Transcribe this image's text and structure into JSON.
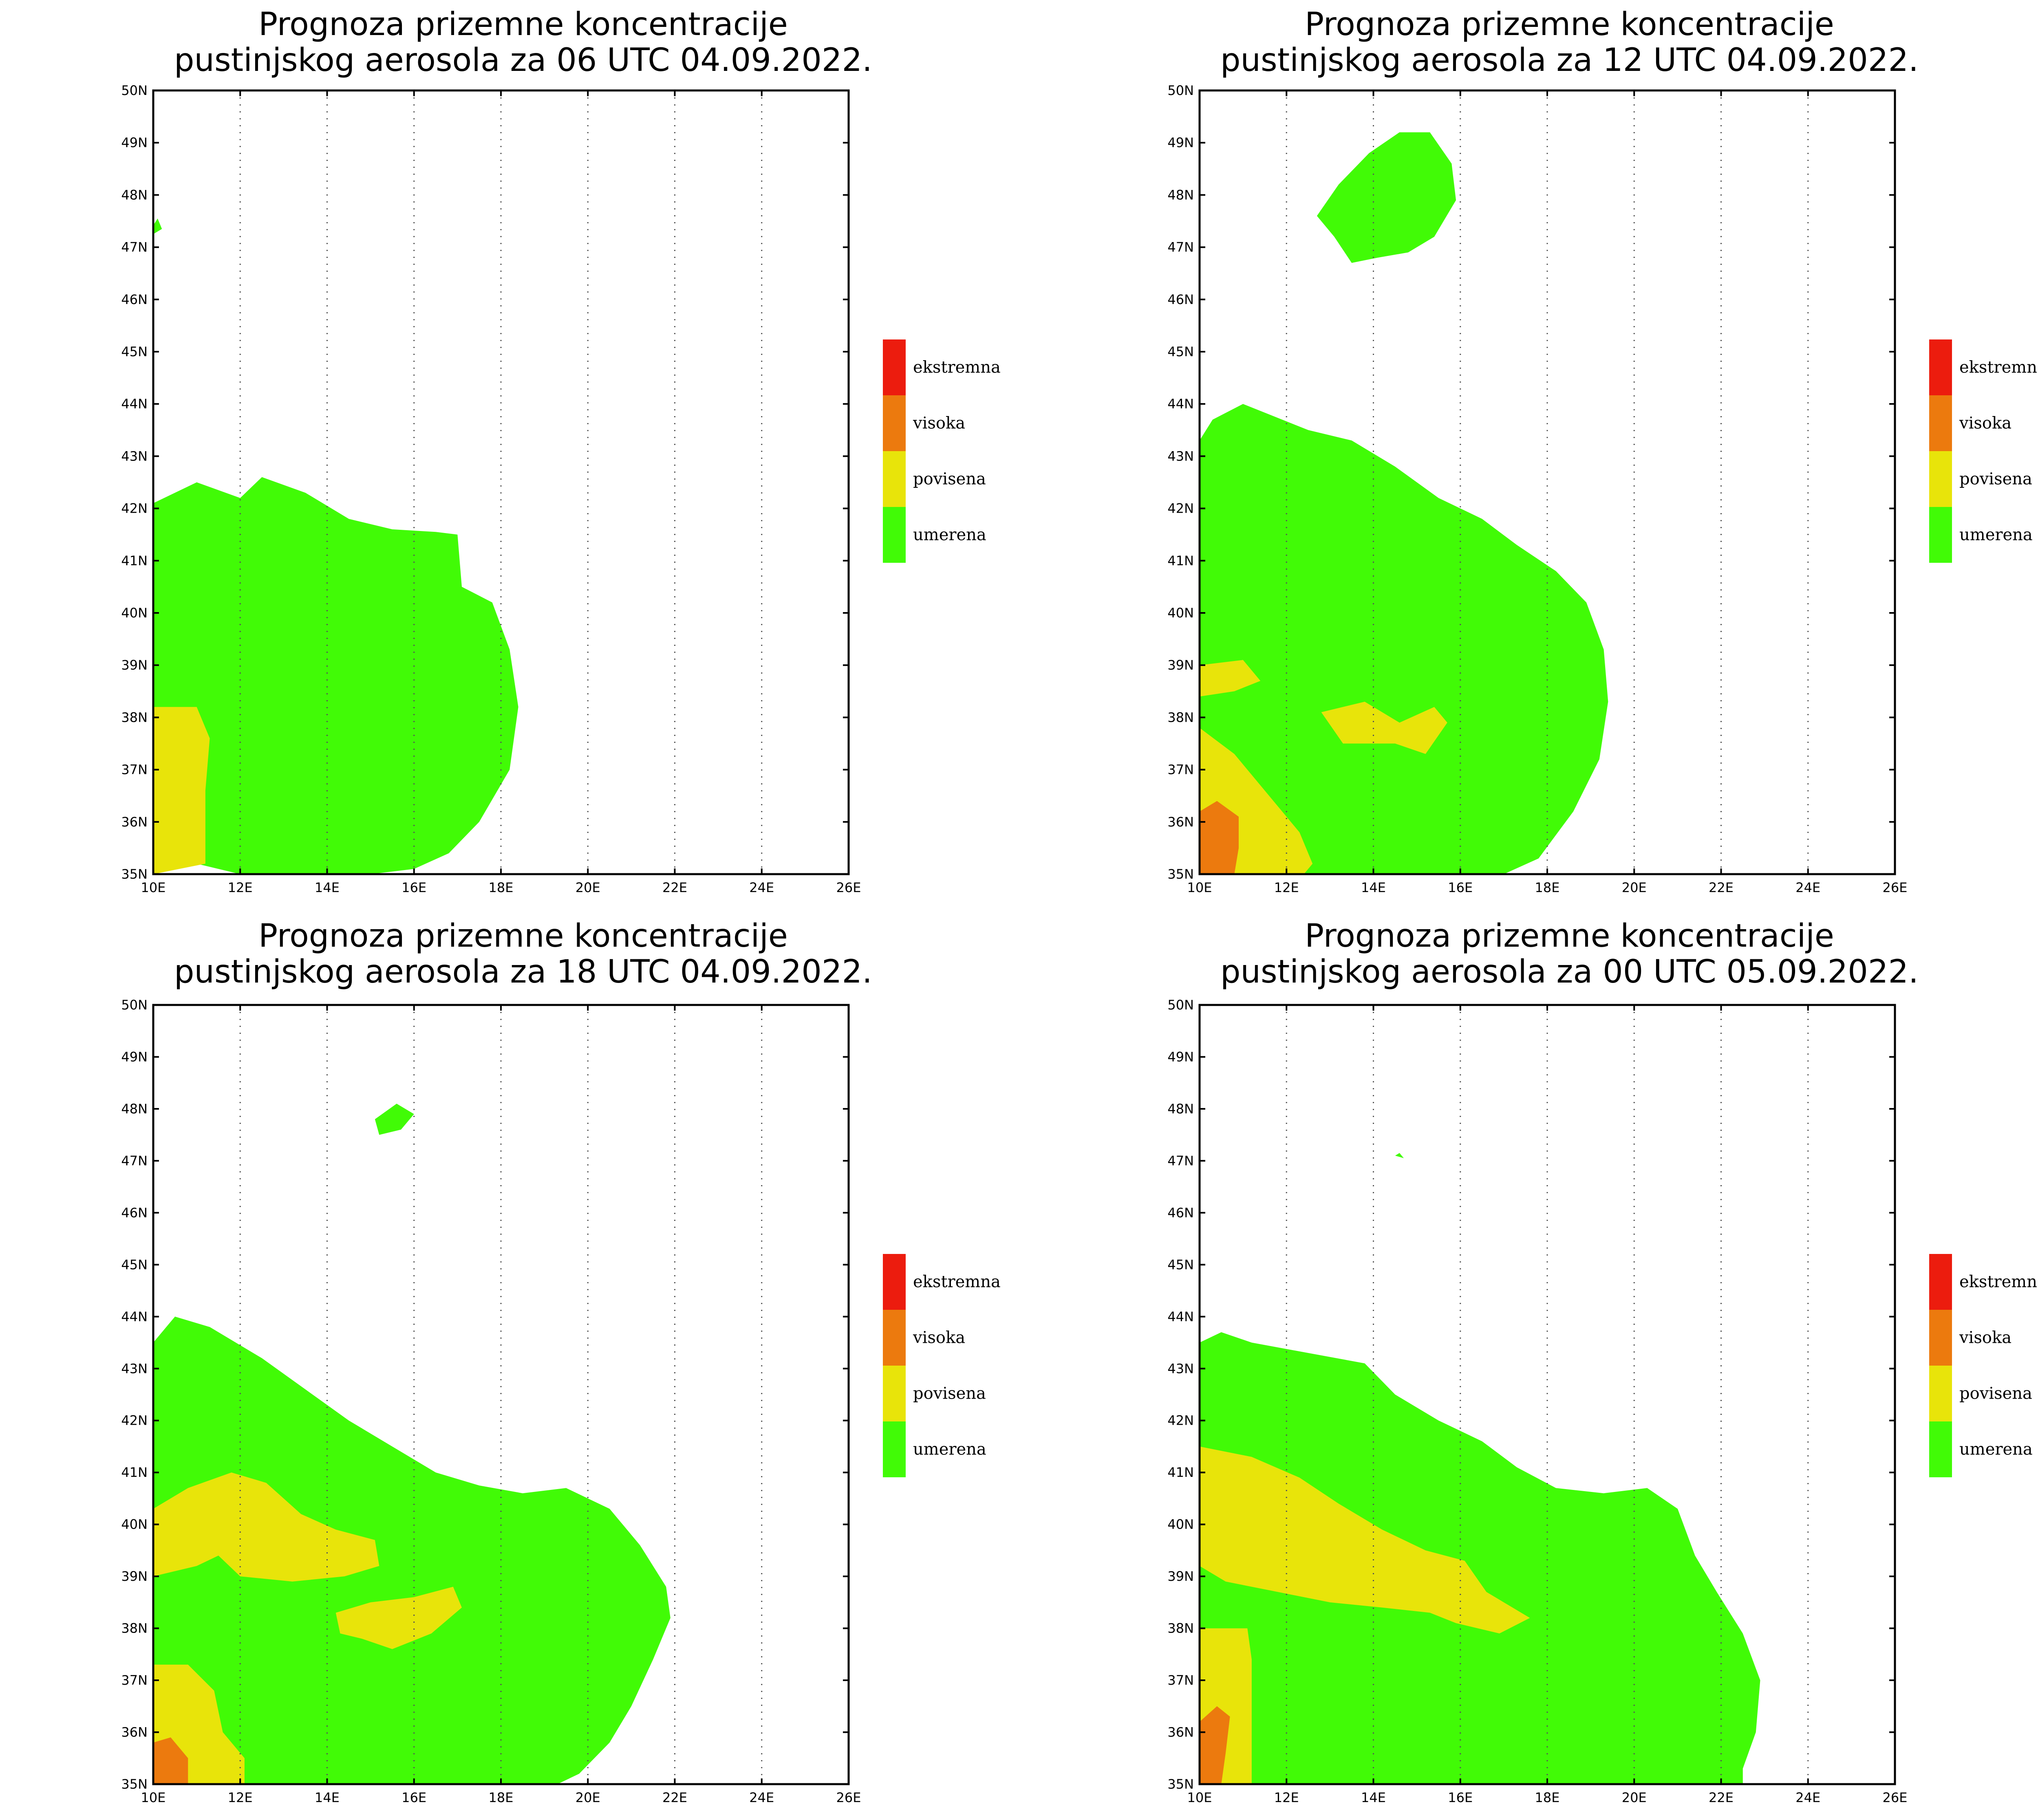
{
  "colors": {
    "ekstremna": "#ec1c0e",
    "visoka": "#ec7a0e",
    "povisena": "#e8e40a",
    "umerena": "#41fb06",
    "border": "#000000",
    "grid": "#555555"
  },
  "legend": [
    {
      "label": "ekstremna",
      "color_key": "ekstremna"
    },
    {
      "label": "visoka",
      "color_key": "visoka"
    },
    {
      "label": "povisena",
      "color_key": "povisena"
    },
    {
      "label": "umerena",
      "color_key": "umerena"
    }
  ],
  "axes": {
    "lon_range": [
      10,
      26
    ],
    "lat_range": [
      35,
      50
    ],
    "lon_ticks": [
      "10E",
      "12E",
      "14E",
      "16E",
      "18E",
      "20E",
      "22E",
      "24E",
      "26E"
    ],
    "lat_ticks": [
      "35N",
      "36N",
      "37N",
      "38N",
      "39N",
      "40N",
      "41N",
      "42N",
      "43N",
      "44N",
      "45N",
      "46N",
      "47N",
      "48N",
      "49N",
      "50N"
    ],
    "grid_lons": [
      12,
      14,
      16,
      18,
      20,
      22,
      24
    ]
  },
  "panels": [
    {
      "title_line1": "Prognoza prizemne koncentracije",
      "title_line2": "pustinjskog aerosola za 06 UTC 04.09.2022.",
      "regions": [
        {
          "level": "umerena",
          "coords": [
            [
              10,
              42.1
            ],
            [
              10.5,
              42.3
            ],
            [
              11,
              42.5
            ],
            [
              12,
              42.2
            ],
            [
              12.5,
              42.6
            ],
            [
              13.5,
              42.3
            ],
            [
              14.5,
              41.8
            ],
            [
              15.5,
              41.6
            ],
            [
              16.5,
              41.55
            ],
            [
              17,
              41.5
            ],
            [
              17.1,
              40.5
            ],
            [
              17.8,
              40.2
            ],
            [
              18.2,
              39.3
            ],
            [
              18.4,
              38.2
            ],
            [
              18.2,
              37
            ],
            [
              17.5,
              36
            ],
            [
              16.8,
              35.4
            ],
            [
              16,
              35.1
            ],
            [
              15,
              35
            ],
            [
              12,
              35
            ],
            [
              11,
              35.2
            ],
            [
              10,
              35
            ]
          ]
        },
        {
          "level": "povisena",
          "coords": [
            [
              10,
              38.2
            ],
            [
              11,
              38.2
            ],
            [
              11.3,
              37.6
            ],
            [
              11.2,
              36.6
            ],
            [
              11.2,
              35.2
            ],
            [
              10,
              35
            ]
          ]
        },
        {
          "level": "umerena",
          "coords": [
            [
              9.95,
              47.35
            ],
            [
              10.1,
              47.55
            ],
            [
              10.2,
              47.35
            ],
            [
              10,
              47.25
            ]
          ]
        }
      ]
    },
    {
      "title_line1": "Prognoza prizemne koncentracije",
      "title_line2": "pustinjskog aerosola za 12 UTC 04.09.2022.",
      "regions": [
        {
          "level": "umerena",
          "coords": [
            [
              10,
              43.3
            ],
            [
              10.3,
              43.7
            ],
            [
              11,
              44
            ],
            [
              12.5,
              43.5
            ],
            [
              13.5,
              43.3
            ],
            [
              14.5,
              42.8
            ],
            [
              15.5,
              42.2
            ],
            [
              16.5,
              41.8
            ],
            [
              17.3,
              41.3
            ],
            [
              18.2,
              40.8
            ],
            [
              18.9,
              40.2
            ],
            [
              19.3,
              39.3
            ],
            [
              19.4,
              38.3
            ],
            [
              19.2,
              37.2
            ],
            [
              18.6,
              36.2
            ],
            [
              17.8,
              35.3
            ],
            [
              17,
              35
            ],
            [
              10,
              35
            ]
          ]
        },
        {
          "level": "povisena",
          "coords": [
            [
              10,
              39.0
            ],
            [
              11,
              39.1
            ],
            [
              11.4,
              38.7
            ],
            [
              10.8,
              38.5
            ],
            [
              10,
              38.4
            ]
          ]
        },
        {
          "level": "povisena",
          "coords": [
            [
              10,
              37.8
            ],
            [
              10.8,
              37.3
            ],
            [
              11.5,
              36.6
            ],
            [
              12.3,
              35.8
            ],
            [
              12.6,
              35.2
            ],
            [
              12.4,
              35
            ],
            [
              10,
              35
            ]
          ]
        },
        {
          "level": "visoka",
          "coords": [
            [
              10,
              36.2
            ],
            [
              10.4,
              36.4
            ],
            [
              10.9,
              36.1
            ],
            [
              10.9,
              35.5
            ],
            [
              10.8,
              35
            ],
            [
              10,
              35
            ]
          ]
        },
        {
          "level": "povisena",
          "coords": [
            [
              12.8,
              38.1
            ],
            [
              13.8,
              38.3
            ],
            [
              14.6,
              37.9
            ],
            [
              15.4,
              38.2
            ],
            [
              15.7,
              37.9
            ],
            [
              15.2,
              37.3
            ],
            [
              14.5,
              37.5
            ],
            [
              13.3,
              37.5
            ]
          ]
        },
        {
          "level": "umerena",
          "coords": [
            [
              12.7,
              47.6
            ],
            [
              13.2,
              48.2
            ],
            [
              13.9,
              48.8
            ],
            [
              14.6,
              49.2
            ],
            [
              15.3,
              49.2
            ],
            [
              15.8,
              48.6
            ],
            [
              15.9,
              47.9
            ],
            [
              15.4,
              47.2
            ],
            [
              14.8,
              46.9
            ],
            [
              14.1,
              46.8
            ],
            [
              13.5,
              46.7
            ],
            [
              13.1,
              47.2
            ]
          ]
        }
      ]
    },
    {
      "title_line1": "Prognoza prizemne koncentracije",
      "title_line2": "pustinjskog aerosola za 18 UTC 04.09.2022.",
      "regions": [
        {
          "level": "umerena",
          "coords": [
            [
              10,
              43.5
            ],
            [
              10.5,
              44
            ],
            [
              11.3,
              43.8
            ],
            [
              12.5,
              43.2
            ],
            [
              13.5,
              42.6
            ],
            [
              14.5,
              42
            ],
            [
              15.5,
              41.5
            ],
            [
              16.5,
              41
            ],
            [
              17.5,
              40.75
            ],
            [
              18.5,
              40.6
            ],
            [
              19.5,
              40.7
            ],
            [
              20.5,
              40.3
            ],
            [
              21.2,
              39.6
            ],
            [
              21.8,
              38.8
            ],
            [
              21.9,
              38.2
            ],
            [
              21.5,
              37.4
            ],
            [
              21,
              36.5
            ],
            [
              20.5,
              35.8
            ],
            [
              19.8,
              35.2
            ],
            [
              19.3,
              35
            ],
            [
              10,
              35
            ]
          ]
        },
        {
          "level": "povisena",
          "coords": [
            [
              10,
              40.3
            ],
            [
              10.8,
              40.7
            ],
            [
              11.8,
              41
            ],
            [
              12.6,
              40.8
            ],
            [
              13.4,
              40.2
            ],
            [
              14.2,
              39.9
            ],
            [
              15.1,
              39.7
            ],
            [
              15.2,
              39.2
            ],
            [
              14.4,
              39
            ],
            [
              13.2,
              38.9
            ],
            [
              12,
              39
            ],
            [
              11.5,
              39.4
            ],
            [
              11,
              39.2
            ],
            [
              10,
              39
            ]
          ]
        },
        {
          "level": "povisena",
          "coords": [
            [
              14.2,
              38.3
            ],
            [
              15,
              38.5
            ],
            [
              16,
              38.6
            ],
            [
              16.9,
              38.8
            ],
            [
              17.1,
              38.4
            ],
            [
              16.4,
              37.9
            ],
            [
              15.5,
              37.6
            ],
            [
              14.8,
              37.8
            ],
            [
              14.3,
              37.9
            ]
          ]
        },
        {
          "level": "povisena",
          "coords": [
            [
              10,
              37.3
            ],
            [
              10.8,
              37.3
            ],
            [
              11.4,
              36.8
            ],
            [
              11.6,
              36
            ],
            [
              12.1,
              35.5
            ],
            [
              12.1,
              35
            ],
            [
              10,
              35
            ]
          ]
        },
        {
          "level": "visoka",
          "coords": [
            [
              10,
              35.8
            ],
            [
              10.4,
              35.9
            ],
            [
              10.8,
              35.5
            ],
            [
              10.8,
              35
            ],
            [
              10,
              35
            ]
          ]
        },
        {
          "level": "umerena",
          "coords": [
            [
              15.1,
              47.8
            ],
            [
              15.6,
              48.1
            ],
            [
              16,
              47.9
            ],
            [
              15.7,
              47.6
            ],
            [
              15.2,
              47.5
            ]
          ]
        }
      ]
    },
    {
      "title_line1": "Prognoza prizemne koncentracije",
      "title_line2": "pustinjskog aerosola za 00 UTC 05.09.2022.",
      "regions": [
        {
          "level": "umerena",
          "coords": [
            [
              10,
              43.5
            ],
            [
              10.5,
              43.7
            ],
            [
              11.2,
              43.5
            ],
            [
              12.5,
              43.3
            ],
            [
              13.8,
              43.1
            ],
            [
              14.5,
              42.5
            ],
            [
              15.5,
              42
            ],
            [
              16.5,
              41.6
            ],
            [
              17.3,
              41.1
            ],
            [
              18.2,
              40.7
            ],
            [
              19.3,
              40.6
            ],
            [
              20.3,
              40.7
            ],
            [
              21,
              40.3
            ],
            [
              21.4,
              39.4
            ],
            [
              21.9,
              38.7
            ],
            [
              22.5,
              37.9
            ],
            [
              22.9,
              37
            ],
            [
              22.8,
              36
            ],
            [
              22.5,
              35.3
            ],
            [
              22.5,
              35
            ],
            [
              10,
              35
            ]
          ]
        },
        {
          "level": "povisena",
          "coords": [
            [
              10,
              41.5
            ],
            [
              11.2,
              41.3
            ],
            [
              12.3,
              40.9
            ],
            [
              13.2,
              40.4
            ],
            [
              14.2,
              39.9
            ],
            [
              15.2,
              39.5
            ],
            [
              16.1,
              39.3
            ],
            [
              16.6,
              38.7
            ],
            [
              17.6,
              38.2
            ],
            [
              16.9,
              37.9
            ],
            [
              15.9,
              38.1
            ],
            [
              15.3,
              38.3
            ],
            [
              14.2,
              38.4
            ],
            [
              13,
              38.5
            ],
            [
              11.8,
              38.7
            ],
            [
              10.6,
              38.9
            ],
            [
              10,
              39.2
            ]
          ]
        },
        {
          "level": "povisena",
          "coords": [
            [
              10,
              38.0
            ],
            [
              11.1,
              38.0
            ],
            [
              11.2,
              37.4
            ],
            [
              11.2,
              36.5
            ],
            [
              11.2,
              35
            ],
            [
              10,
              35
            ]
          ]
        },
        {
          "level": "visoka",
          "coords": [
            [
              10,
              36.2
            ],
            [
              10.4,
              36.5
            ],
            [
              10.7,
              36.3
            ],
            [
              10.6,
              35.6
            ],
            [
              10.5,
              35
            ],
            [
              10,
              35
            ]
          ]
        },
        {
          "level": "umerena",
          "coords": [
            [
              14.5,
              47.1
            ],
            [
              14.6,
              47.15
            ],
            [
              14.7,
              47.05
            ]
          ]
        }
      ]
    }
  ]
}
